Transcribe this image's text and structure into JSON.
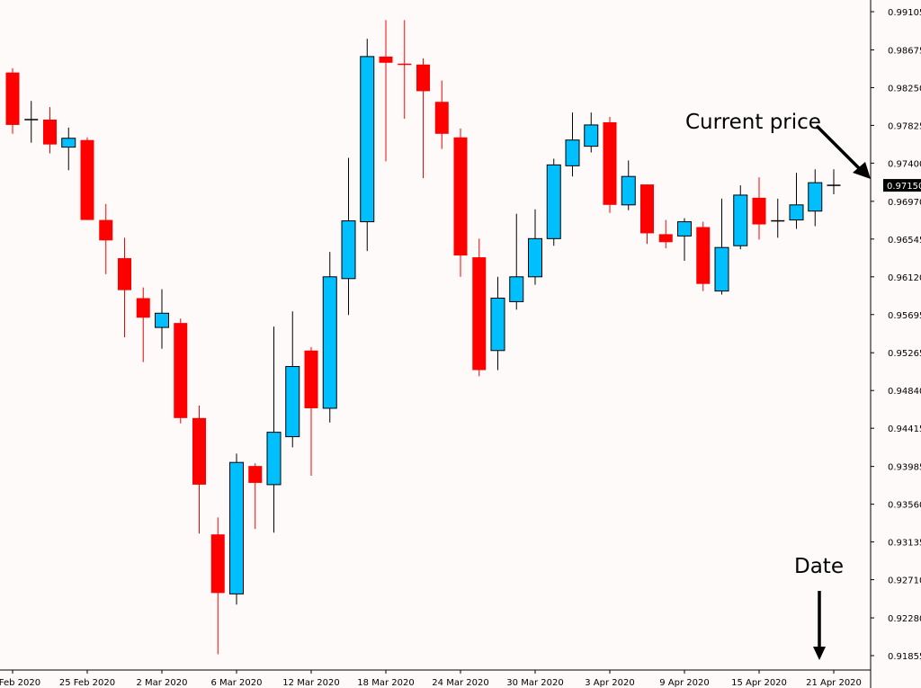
{
  "chart_data": {
    "type": "candlestick",
    "title": "",
    "xlabel": "",
    "ylabel": "",
    "ylim": [
      0.91855,
      0.99105
    ],
    "grid": false,
    "colors": {
      "bullish": "#00bfff",
      "bearish": "#ff0000",
      "outline": "#000000",
      "background": "#fffafa"
    },
    "y_ticks": [
      "0.99105",
      "0.98675",
      "0.98250",
      "0.97825",
      "0.97400",
      "0.96970",
      "0.96545",
      "0.96120",
      "0.95695",
      "0.95265",
      "0.94840",
      "0.94415",
      "0.93985",
      "0.93560",
      "0.93135",
      "0.92710",
      "0.92280",
      "0.91855"
    ],
    "x_ticks": [
      {
        "index": 0,
        "label": "20 Feb 2020"
      },
      {
        "index": 4,
        "label": "25 Feb 2020"
      },
      {
        "index": 8,
        "label": "2 Mar 2020"
      },
      {
        "index": 12,
        "label": "6 Mar 2020"
      },
      {
        "index": 16,
        "label": "12 Mar 2020"
      },
      {
        "index": 20,
        "label": "18 Mar 2020"
      },
      {
        "index": 24,
        "label": "24 Mar 2020"
      },
      {
        "index": 28,
        "label": "30 Mar 2020"
      },
      {
        "index": 32,
        "label": "3 Apr 2020"
      },
      {
        "index": 36,
        "label": "9 Apr 2020"
      },
      {
        "index": 40,
        "label": "15 Apr 2020"
      },
      {
        "index": 44,
        "label": "21 Apr 2020"
      }
    ],
    "candles": [
      {
        "open": 0.9842,
        "high": 0.9847,
        "low": 0.9773,
        "close": 0.9783
      },
      {
        "open": 0.9789,
        "high": 0.981,
        "low": 0.9763,
        "close": 0.9789
      },
      {
        "open": 0.9789,
        "high": 0.9803,
        "low": 0.9751,
        "close": 0.9761
      },
      {
        "open": 0.9758,
        "high": 0.978,
        "low": 0.9732,
        "close": 0.9768
      },
      {
        "open": 0.9766,
        "high": 0.9769,
        "low": 0.9676,
        "close": 0.9676
      },
      {
        "open": 0.9676,
        "high": 0.9694,
        "low": 0.9615,
        "close": 0.9653
      },
      {
        "open": 0.9633,
        "high": 0.9656,
        "low": 0.9544,
        "close": 0.9597
      },
      {
        "open": 0.9588,
        "high": 0.96,
        "low": 0.9516,
        "close": 0.9566
      },
      {
        "open": 0.9555,
        "high": 0.9598,
        "low": 0.9531,
        "close": 0.9571
      },
      {
        "open": 0.956,
        "high": 0.9565,
        "low": 0.9447,
        "close": 0.9453
      },
      {
        "open": 0.9453,
        "high": 0.9467,
        "low": 0.9323,
        "close": 0.9378
      },
      {
        "open": 0.9322,
        "high": 0.9341,
        "low": 0.9187,
        "close": 0.9256
      },
      {
        "open": 0.9255,
        "high": 0.9413,
        "low": 0.9243,
        "close": 0.9403
      },
      {
        "open": 0.9399,
        "high": 0.9402,
        "low": 0.9328,
        "close": 0.938
      },
      {
        "open": 0.9378,
        "high": 0.9556,
        "low": 0.9324,
        "close": 0.9437
      },
      {
        "open": 0.9432,
        "high": 0.9573,
        "low": 0.942,
        "close": 0.9511
      },
      {
        "open": 0.9529,
        "high": 0.9533,
        "low": 0.9388,
        "close": 0.9464
      },
      {
        "open": 0.9464,
        "high": 0.964,
        "low": 0.9448,
        "close": 0.9612
      },
      {
        "open": 0.961,
        "high": 0.9746,
        "low": 0.9569,
        "close": 0.9675
      },
      {
        "open": 0.9674,
        "high": 0.988,
        "low": 0.9641,
        "close": 0.986
      },
      {
        "open": 0.986,
        "high": 0.9901,
        "low": 0.9742,
        "close": 0.9853
      },
      {
        "open": 0.9852,
        "high": 0.9901,
        "low": 0.979,
        "close": 0.9851
      },
      {
        "open": 0.9851,
        "high": 0.9858,
        "low": 0.9723,
        "close": 0.9821
      },
      {
        "open": 0.9809,
        "high": 0.9833,
        "low": 0.9756,
        "close": 0.9773
      },
      {
        "open": 0.9769,
        "high": 0.9779,
        "low": 0.9612,
        "close": 0.9636
      },
      {
        "open": 0.9634,
        "high": 0.9655,
        "low": 0.95,
        "close": 0.9507
      },
      {
        "open": 0.9529,
        "high": 0.9612,
        "low": 0.9507,
        "close": 0.9588
      },
      {
        "open": 0.9584,
        "high": 0.9683,
        "low": 0.9575,
        "close": 0.9612
      },
      {
        "open": 0.9612,
        "high": 0.9688,
        "low": 0.9603,
        "close": 0.9655
      },
      {
        "open": 0.9655,
        "high": 0.9745,
        "low": 0.9647,
        "close": 0.9738
      },
      {
        "open": 0.9737,
        "high": 0.9797,
        "low": 0.9725,
        "close": 0.9766
      },
      {
        "open": 0.9759,
        "high": 0.9797,
        "low": 0.9752,
        "close": 0.9783
      },
      {
        "open": 0.9786,
        "high": 0.9792,
        "low": 0.9684,
        "close": 0.9693
      },
      {
        "open": 0.9693,
        "high": 0.9743,
        "low": 0.9687,
        "close": 0.9725
      },
      {
        "open": 0.9716,
        "high": 0.9716,
        "low": 0.9649,
        "close": 0.9661
      },
      {
        "open": 0.966,
        "high": 0.9676,
        "low": 0.9644,
        "close": 0.9651
      },
      {
        "open": 0.9658,
        "high": 0.9678,
        "low": 0.963,
        "close": 0.9674
      },
      {
        "open": 0.9668,
        "high": 0.9674,
        "low": 0.9596,
        "close": 0.9604
      },
      {
        "open": 0.9596,
        "high": 0.97,
        "low": 0.9592,
        "close": 0.9645
      },
      {
        "open": 0.9647,
        "high": 0.9715,
        "low": 0.9643,
        "close": 0.9704
      },
      {
        "open": 0.9701,
        "high": 0.9724,
        "low": 0.9654,
        "close": 0.9671
      },
      {
        "open": 0.9675,
        "high": 0.97,
        "low": 0.9656,
        "close": 0.9675
      },
      {
        "open": 0.9676,
        "high": 0.9729,
        "low": 0.9666,
        "close": 0.9693
      },
      {
        "open": 0.9686,
        "high": 0.9733,
        "low": 0.9669,
        "close": 0.9718
      },
      {
        "open": 0.9715,
        "high": 0.9733,
        "low": 0.9705,
        "close": 0.9715
      }
    ],
    "current_price": {
      "label": "0.97150",
      "value": 0.9715
    },
    "annotations": {
      "current_price": "Current price",
      "date": "Date"
    }
  }
}
